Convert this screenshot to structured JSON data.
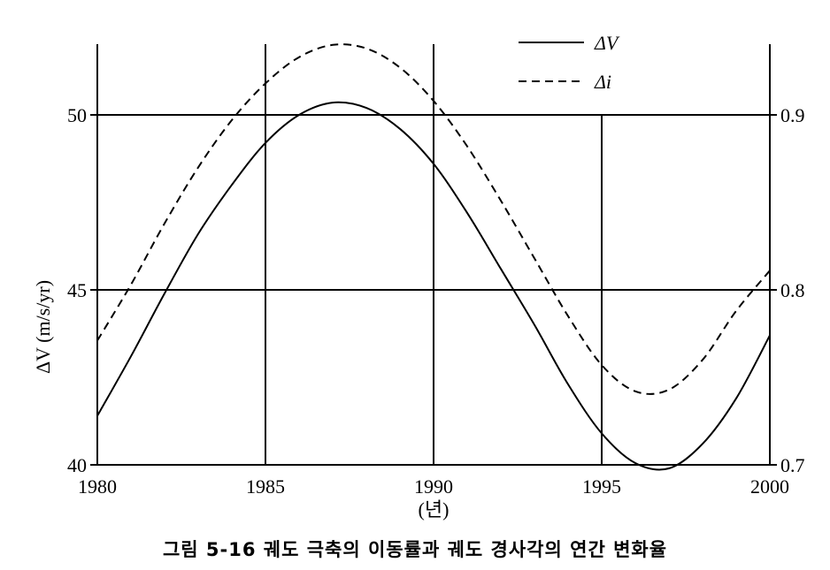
{
  "caption": "그림 5-16 궤도 극축의 이동률과 궤도 경사각의 연간 변화율",
  "chart_data": {
    "type": "line",
    "title": "",
    "xlabel": "(년)",
    "ylabel": "ΔV (m/s/yr)",
    "y2label": "",
    "xlim": [
      1980,
      2000
    ],
    "ylim": [
      40,
      52
    ],
    "y2lim": [
      0.7,
      0.94
    ],
    "x_ticks": [
      "1980",
      "1985",
      "1990",
      "1995",
      "2000"
    ],
    "y_ticks": [
      "40",
      "45",
      "50"
    ],
    "y2_ticks": [
      "0.7",
      "0.8",
      "0.9"
    ],
    "grid": true,
    "legend_position": "top-right",
    "series": [
      {
        "name": "ΔV",
        "axis": "left",
        "style": "solid",
        "x": [
          1980,
          1981,
          1982,
          1983,
          1984,
          1985,
          1986,
          1987,
          1988,
          1989,
          1990,
          1991,
          1992,
          1993,
          1994,
          1995,
          1996,
          1997,
          1998,
          1999,
          2000
        ],
        "values": [
          41.4,
          43.1,
          44.9,
          46.6,
          48.0,
          49.2,
          50.0,
          50.35,
          50.2,
          49.6,
          48.6,
          47.2,
          45.6,
          44.0,
          42.3,
          40.9,
          40.05,
          39.9,
          40.6,
          41.9,
          43.7
        ]
      },
      {
        "name": "Δi",
        "axis": "right",
        "style": "dashed",
        "x": [
          1980,
          1981,
          1982,
          1983,
          1984,
          1985,
          1986,
          1987,
          1988,
          1989,
          1990,
          1991,
          1992,
          1993,
          1994,
          1995,
          1996,
          1997,
          1998,
          1999,
          2000
        ],
        "values": [
          0.771,
          0.803,
          0.838,
          0.87,
          0.897,
          0.918,
          0.933,
          0.94,
          0.938,
          0.927,
          0.908,
          0.882,
          0.851,
          0.818,
          0.785,
          0.757,
          0.742,
          0.743,
          0.76,
          0.788,
          0.811
        ]
      }
    ]
  }
}
